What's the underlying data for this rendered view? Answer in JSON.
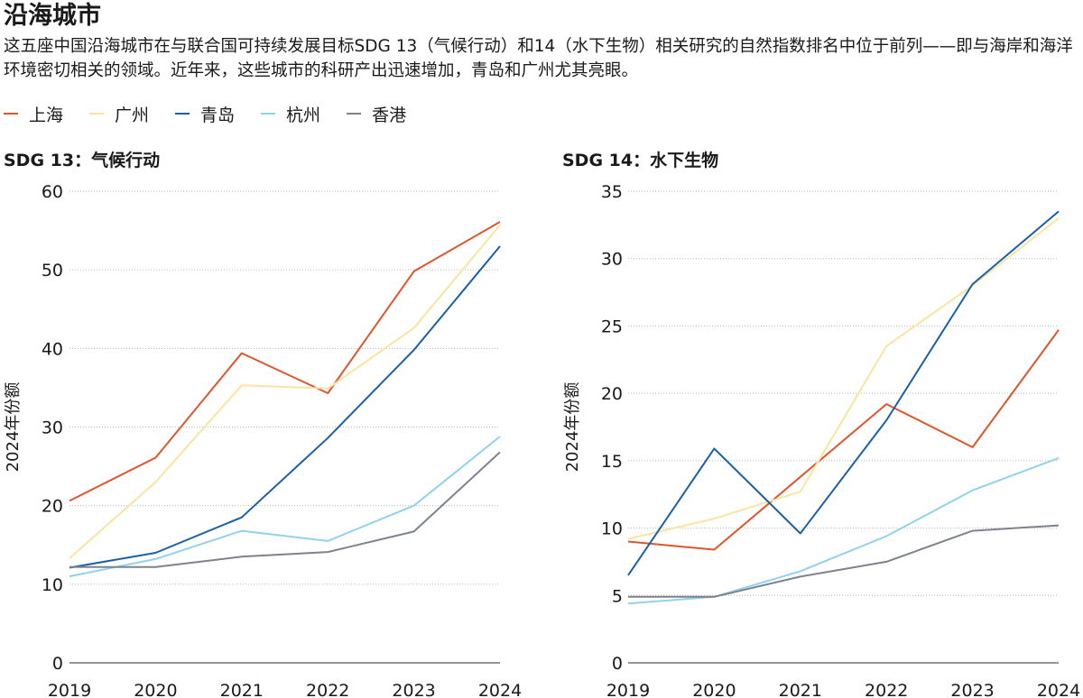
{
  "title": "沿海城市",
  "subtitle": "这五座中国沿海城市在与联合国可持续发展目标SDG 13（气候行动）和14（水下生物）相关研究的自然指数排名中位于前列——即与海岸和海洋环境密切相关的领域。近年来，这些城市的科研产出迅速增加，青岛和广州尤其亮眼。",
  "legend": [
    {
      "name": "上海",
      "color": "#e0542e"
    },
    {
      "name": "广州",
      "color": "#fbe3a1"
    },
    {
      "name": "青岛",
      "color": "#1a5fa8"
    },
    {
      "name": "杭州",
      "color": "#92d1ee"
    },
    {
      "name": "香港",
      "color": "#7c838d"
    }
  ],
  "chart_data": [
    {
      "type": "line",
      "title": "SDG 13：气候行动",
      "ylabel": "2024年份额",
      "x": [
        "2019",
        "2020",
        "2021",
        "2022",
        "2023",
        "2024"
      ],
      "ylim": [
        0,
        60
      ],
      "yticks": [
        0,
        10,
        20,
        30,
        40,
        50,
        60
      ],
      "grid": true,
      "series": [
        {
          "name": "上海",
          "color": "#e0542e",
          "values": [
            20.6,
            26.1,
            39.4,
            34.3,
            49.8,
            56.1
          ]
        },
        {
          "name": "广州",
          "color": "#fbe3a1",
          "values": [
            13.3,
            23.0,
            35.3,
            34.9,
            42.6,
            55.7
          ]
        },
        {
          "name": "青岛",
          "color": "#1a5fa8",
          "values": [
            12.1,
            14.0,
            18.5,
            28.6,
            39.8,
            53.0
          ]
        },
        {
          "name": "杭州",
          "color": "#92d1ee",
          "values": [
            11.0,
            13.2,
            16.8,
            15.5,
            20.0,
            28.8
          ]
        },
        {
          "name": "香港",
          "color": "#7c838d",
          "values": [
            12.2,
            12.2,
            13.5,
            14.1,
            16.7,
            26.8
          ]
        }
      ]
    },
    {
      "type": "line",
      "title": "SDG 14：水下生物",
      "ylabel": "2024年份额",
      "x": [
        "2019",
        "2020",
        "2021",
        "2022",
        "2023",
        "2024"
      ],
      "ylim": [
        0,
        35
      ],
      "yticks": [
        0,
        5,
        10,
        15,
        20,
        25,
        30,
        35
      ],
      "grid": true,
      "series": [
        {
          "name": "上海",
          "color": "#e0542e",
          "values": [
            9.0,
            8.4,
            13.8,
            19.2,
            16.0,
            24.7
          ]
        },
        {
          "name": "广州",
          "color": "#fbe3a1",
          "values": [
            9.2,
            10.7,
            12.7,
            23.5,
            28.0,
            33.0
          ]
        },
        {
          "name": "青岛",
          "color": "#1a5fa8",
          "values": [
            6.5,
            15.9,
            9.6,
            18.0,
            28.1,
            33.5
          ]
        },
        {
          "name": "杭州",
          "color": "#92d1ee",
          "values": [
            4.4,
            4.9,
            6.8,
            9.4,
            12.8,
            15.2
          ]
        },
        {
          "name": "香港",
          "color": "#7c838d",
          "values": [
            4.9,
            4.9,
            6.4,
            7.5,
            9.8,
            10.2
          ]
        }
      ]
    }
  ]
}
